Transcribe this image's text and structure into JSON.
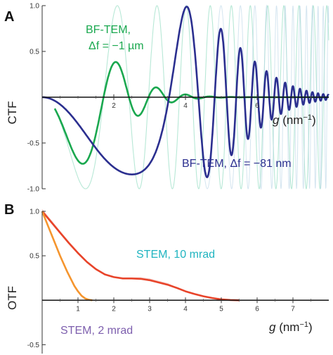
{
  "chart_data": [
    {
      "type": "line",
      "panel": "A",
      "ylabel": "CTF",
      "xlabel": "g (nm⁻¹)",
      "xlim": [
        0,
        8
      ],
      "ylim": [
        -1,
        1
      ],
      "x_ticks": [
        "2",
        "4",
        "6"
      ],
      "y_ticks": [
        "1.0",
        "0.5",
        "-0.5",
        "-1.0"
      ],
      "series": [
        {
          "name": "BF-TEM, Δf = −1 µm",
          "color": "#1aa84f",
          "envelope_color": "#9fe0c8",
          "defocus_nm": -1000,
          "envelope_falloff": 0.55,
          "label_lines": [
            "BF-TEM,",
            "Δf = −1 µm"
          ]
        },
        {
          "name": "BF-TEM, Δf = −81 nm",
          "color": "#2b2f8f",
          "defocus_nm": -81,
          "label": "BF-TEM, Δf = −81 nm"
        }
      ]
    },
    {
      "type": "line",
      "panel": "B",
      "ylabel": "OTF",
      "xlabel": "g (nm⁻¹)",
      "xlim": [
        0,
        8
      ],
      "ylim": [
        -0.6,
        1
      ],
      "x_ticks": [
        "1",
        "2",
        "3",
        "4",
        "5",
        "6",
        "7"
      ],
      "y_ticks": [
        "1.0",
        "0.5",
        "-0.5"
      ],
      "series": [
        {
          "name": "STEM, 10 mrad",
          "color": "#e8442a",
          "label_color": "#1fb4c0",
          "label": "STEM, 10 mrad",
          "x": [
            0,
            0.25,
            0.5,
            0.75,
            1.0,
            1.25,
            1.5,
            1.75,
            2.0,
            2.25,
            2.5,
            2.75,
            3.0,
            3.25,
            3.5,
            3.75,
            4.0,
            4.25,
            4.5,
            4.75,
            5.0,
            5.25,
            5.5
          ],
          "y": [
            1.0,
            0.88,
            0.76,
            0.64,
            0.53,
            0.43,
            0.35,
            0.29,
            0.26,
            0.245,
            0.245,
            0.24,
            0.225,
            0.2,
            0.175,
            0.14,
            0.1,
            0.07,
            0.045,
            0.025,
            0.01,
            0.003,
            0.0
          ]
        },
        {
          "name": "STEM, 2 mrad",
          "color": "#f5952e",
          "label_color": "#7d5fae",
          "label": "STEM, 2 mrad",
          "x": [
            0,
            0.1,
            0.2,
            0.3,
            0.4,
            0.5,
            0.6,
            0.7,
            0.8,
            0.9,
            1.0,
            1.1,
            1.2,
            1.3,
            1.4
          ],
          "y": [
            1.0,
            0.9,
            0.8,
            0.7,
            0.6,
            0.5,
            0.41,
            0.32,
            0.24,
            0.16,
            0.1,
            0.05,
            0.02,
            0.005,
            0.0
          ]
        }
      ]
    }
  ]
}
